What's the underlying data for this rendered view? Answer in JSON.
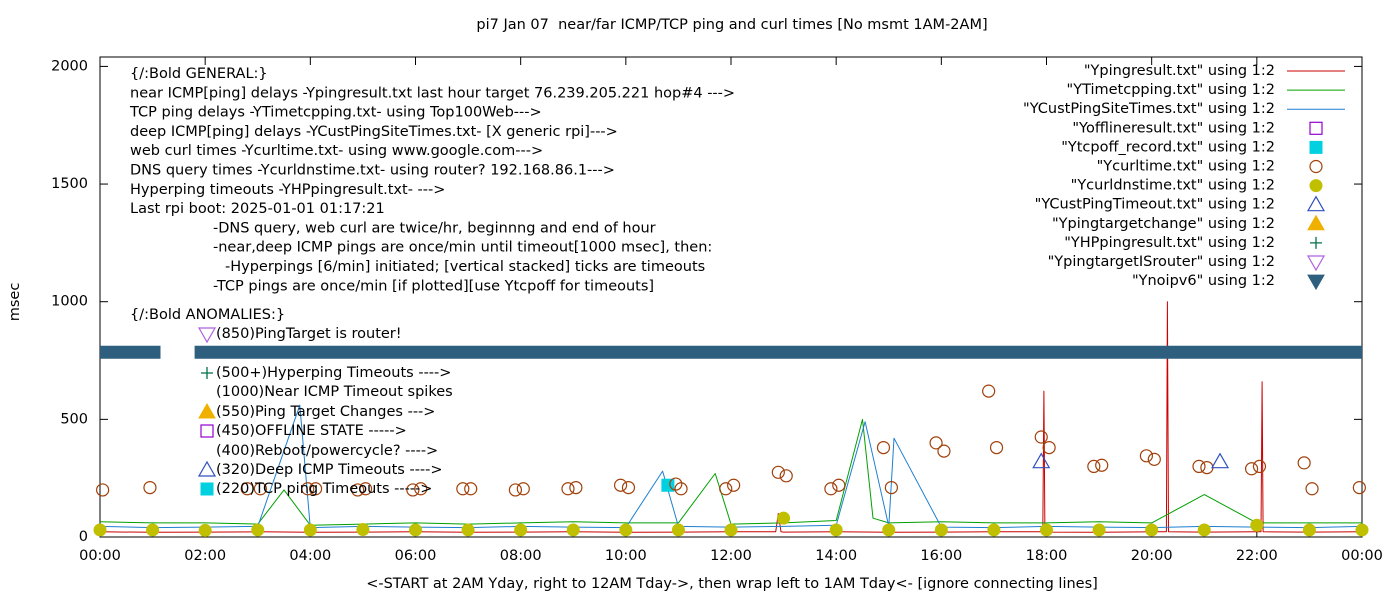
{
  "chart_data": {
    "type": "line",
    "title": "pi7 Jan 07  near/far ICMP/TCP ping and curl times [No msmt 1AM-2AM]",
    "x_label": "<-START at 2AM Yday, right to 12AM Tday->, then wrap left to 1AM Tday<- [ignore connecting lines]",
    "y_label": "msec",
    "xlim": [
      0,
      24
    ],
    "xticks": [
      {
        "value": 0,
        "label": "00:00"
      },
      {
        "value": 2,
        "label": "02:00"
      },
      {
        "value": 4,
        "label": "04:00"
      },
      {
        "value": 6,
        "label": "06:00"
      },
      {
        "value": 8,
        "label": "08:00"
      },
      {
        "value": 10,
        "label": "10:00"
      },
      {
        "value": 12,
        "label": "12:00"
      },
      {
        "value": 14,
        "label": "14:00"
      },
      {
        "value": 16,
        "label": "16:00"
      },
      {
        "value": 18,
        "label": "18:00"
      },
      {
        "value": 20,
        "label": "20:00"
      },
      {
        "value": 22,
        "label": "22:00"
      },
      {
        "value": 24,
        "label": "00:00"
      }
    ],
    "ylim": [
      0,
      2040
    ],
    "yticks": [
      0,
      500,
      1000,
      1500,
      2000
    ],
    "legend": "top-right",
    "annotations": {
      "general": [
        "{/:Bold GENERAL:}",
        "near ICMP[ping] delays -Ypingresult.txt last hour target 76.239.205.221 hop#4 --->",
        "TCP ping delays -YTimetcpping.txt- using Top100Web--->",
        "deep ICMP[ping] delays -YCustPingSiteTimes.txt- [X generic rpi]--->",
        "web curl times -Ycurltime.txt- using www.google.com--->",
        "DNS query times -Ycurldnstime.txt- using router? 192.168.86.1--->",
        "Hyperping timeouts -YHPpingresult.txt- --->",
        "Last rpi boot: 2025-01-01 01:17:21",
        "-DNS query, web curl are twice/hr, beginnng and end of hour",
        "-near,deep ICMP pings are once/min until timeout[1000 msec], then:",
        "-Hyperpings [6/min] initiated; [vertical stacked] ticks are timeouts",
        "-TCP pings are once/min [if plotted][use Ytcpoff for timeouts]"
      ],
      "anomalies": [
        "{/:Bold ANOMALIES:}",
        "(850)PingTarget is router!",
        "(500+)Hyperping Timeouts ---->",
        "(1000)Near ICMP Timeout spikes",
        "(550)Ping Target Changes --->",
        "(450)OFFLINE STATE ----->",
        "(400)Reboot/powercycle? ---->",
        "(320)Deep ICMP Timeouts ---->",
        "(220)TCP ping Timeouts ----->"
      ]
    },
    "series": [
      {
        "name": "\"Ypingresult.txt\" using 1:2",
        "color": "#cc0000",
        "marker": "line",
        "x": [
          0,
          1,
          2,
          3,
          4,
          5,
          6,
          7,
          8,
          9,
          10,
          11,
          12,
          12.85,
          12.9,
          12.95,
          13,
          14,
          15,
          16,
          17,
          17.93,
          17.95,
          17.97,
          18,
          19,
          20,
          20.28,
          20.3,
          20.32,
          21,
          22,
          22.08,
          22.1,
          22.12,
          23,
          24
        ],
        "values": [
          22,
          20,
          21,
          22,
          20,
          21,
          22,
          20,
          21,
          22,
          20,
          21,
          22,
          22,
          100,
          22,
          21,
          22,
          20,
          21,
          22,
          22,
          620,
          22,
          21,
          20,
          22,
          22,
          1000,
          22,
          21,
          22,
          22,
          660,
          22,
          21,
          22
        ]
      },
      {
        "name": "\"YTimetcpping.txt\" using 1:2",
        "color": "#00a000",
        "marker": "line",
        "x": [
          0,
          1,
          2,
          3,
          3.5,
          4,
          5,
          6,
          7,
          8,
          9,
          10,
          11,
          11.7,
          12,
          13,
          14,
          14.5,
          14.7,
          15,
          16,
          17,
          18,
          19,
          20,
          21,
          22,
          23,
          24
        ],
        "values": [
          65,
          60,
          60,
          55,
          200,
          50,
          55,
          60,
          55,
          60,
          65,
          60,
          60,
          270,
          55,
          60,
          70,
          500,
          80,
          60,
          65,
          60,
          60,
          65,
          60,
          180,
          60,
          60,
          60
        ]
      },
      {
        "name": "\"YCustPingSiteTimes.txt\" using 1:2",
        "color": "#1e7fd0",
        "marker": "line",
        "x": [
          0,
          1,
          2,
          3,
          3.8,
          4,
          5,
          6,
          7,
          8,
          9,
          10,
          10.7,
          11,
          12,
          13,
          14,
          14.55,
          15,
          15.1,
          16,
          17,
          18,
          19,
          20,
          21,
          22,
          23,
          24
        ],
        "values": [
          45,
          40,
          42,
          45,
          560,
          40,
          45,
          42,
          40,
          45,
          42,
          40,
          280,
          45,
          42,
          45,
          50,
          490,
          45,
          420,
          42,
          40,
          45,
          42,
          40,
          45,
          42,
          40,
          45
        ]
      },
      {
        "name": "\"Yofflineresult.txt\" using 1:2",
        "color": "#9400d3",
        "marker": "square-open",
        "x": [],
        "values": []
      },
      {
        "name": "\"Ytcpoff_record.txt\" using 1:2",
        "color": "#00d0e0",
        "marker": "square",
        "x": [
          10.8
        ],
        "values": [
          220
        ]
      },
      {
        "name": "\"Ycurltime.txt\" using 1:2",
        "color": "#a0400a",
        "marker": "circle-open",
        "x": [
          0.05,
          0.95,
          2.8,
          3.05,
          3.95,
          4.1,
          4.9,
          5.05,
          5.95,
          6.1,
          6.9,
          7.05,
          7.9,
          8.05,
          8.9,
          9.05,
          9.9,
          10.05,
          10.95,
          11.05,
          11.9,
          12.05,
          12.9,
          13.05,
          13.9,
          14.05,
          14.9,
          15.05,
          15.9,
          16.05,
          16.9,
          17.05,
          17.9,
          18.05,
          18.9,
          19.05,
          19.9,
          20.05,
          20.9,
          21.05,
          21.9,
          22.05,
          22.9,
          23.05,
          23.95
        ],
        "values": [
          200,
          210,
          205,
          205,
          205,
          205,
          200,
          205,
          200,
          205,
          205,
          205,
          200,
          205,
          205,
          210,
          220,
          210,
          225,
          205,
          205,
          220,
          275,
          260,
          205,
          220,
          380,
          210,
          400,
          365,
          620,
          380,
          425,
          380,
          300,
          305,
          345,
          330,
          300,
          295,
          290,
          300,
          315,
          205,
          210
        ]
      },
      {
        "name": "\"Ycurldnstime.txt\" using 1:2",
        "color": "#c0c000",
        "marker": "circle",
        "x": [
          0,
          1,
          2,
          3,
          4,
          5,
          6,
          7,
          8,
          9,
          10,
          11,
          12,
          13,
          14,
          15,
          16,
          17,
          18,
          19,
          20,
          21,
          22,
          23,
          24
        ],
        "values": [
          30,
          30,
          28,
          30,
          30,
          32,
          30,
          30,
          30,
          30,
          30,
          30,
          30,
          80,
          30,
          30,
          30,
          30,
          30,
          30,
          30,
          30,
          50,
          30,
          30
        ]
      },
      {
        "name": "\"YCustPingTimeout.txt\" using 1:2",
        "color": "#3050c0",
        "marker": "triangle-open",
        "x": [
          17.9,
          21.3
        ],
        "values": [
          320,
          320
        ]
      },
      {
        "name": "\"Ypingtargetchange\" using 1:2",
        "color": "#f0b000",
        "marker": "triangle",
        "x": [],
        "values": []
      },
      {
        "name": "\"YHPpingresult.txt\" using 1:2",
        "color": "#00704a",
        "marker": "plus",
        "x": [],
        "values": []
      },
      {
        "name": "\"YpingtargetISrouter\" using 1:2",
        "color": "#b060e0",
        "marker": "triangle-down-open",
        "x": [],
        "values": []
      },
      {
        "name": "\"Ynoipv6\" using 1:2",
        "color": "#2e5f7f",
        "marker": "triangle-down",
        "x": [
          0,
          1.15,
          1.5,
          1.8,
          24
        ],
        "values": [
          785,
          785,
          null,
          785,
          785
        ]
      }
    ]
  }
}
